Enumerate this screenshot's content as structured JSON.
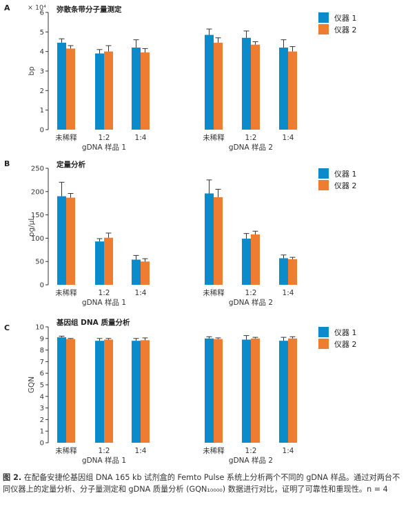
{
  "legend": {
    "series": [
      "仪器 1",
      "仪器 2"
    ],
    "colors": [
      "#0b8bc9",
      "#ef7d31"
    ]
  },
  "caption": {
    "fig_label": "图 2.",
    "text": "在配备安捷伦基因组 DNA 165 kb 试剂盒的 Femto Pulse 系统上分析两个不同的 gDNA 样品。通过对两台不同仪器上的定量分析、分子量测定和 gDNA 质量分析 (GQN₁₀₀₀₀) 数据进行对比，证明了可靠性和重现性。n = 4"
  },
  "chart_data": [
    {
      "type": "bar",
      "panel": "A",
      "title": "弥散条带分子量测定",
      "ylabel": "bp",
      "exponent_label": "× 10⁴",
      "ylim": [
        0,
        6
      ],
      "yticks": [
        0,
        1,
        2,
        3,
        4,
        5,
        6
      ],
      "grid": false,
      "legend_position": "top-right",
      "groups": [
        {
          "name": "gDNA 样品 1",
          "categories": [
            "未稀释",
            "1:2",
            "1:4"
          ]
        },
        {
          "name": "gDNA 样品 2",
          "categories": [
            "未稀释",
            "1:2",
            "1:4"
          ]
        }
      ],
      "series": [
        {
          "name": "仪器 1",
          "values": [
            4.45,
            3.9,
            4.2,
            4.85,
            4.7,
            4.2
          ],
          "errors": [
            0.2,
            0.2,
            0.4,
            0.3,
            0.35,
            0.4
          ]
        },
        {
          "name": "仪器 2",
          "values": [
            4.15,
            4.0,
            3.95,
            4.45,
            4.35,
            4.0
          ],
          "errors": [
            0.15,
            0.3,
            0.2,
            0.25,
            0.15,
            0.25
          ]
        }
      ]
    },
    {
      "type": "bar",
      "panel": "B",
      "title": "定量分析",
      "ylabel": "pg/μL",
      "ylim": [
        0,
        250
      ],
      "yticks": [
        0,
        50,
        100,
        150,
        200,
        250
      ],
      "grid": false,
      "legend_position": "top-right",
      "groups": [
        {
          "name": "gDNA 样品 1",
          "categories": [
            "未稀释",
            "1:2",
            "1:4"
          ]
        },
        {
          "name": "gDNA 样品 2",
          "categories": [
            "未稀释",
            "1:2",
            "1:4"
          ]
        }
      ],
      "series": [
        {
          "name": "仪器 1",
          "values": [
            190,
            93,
            54,
            196,
            99,
            57
          ],
          "errors": [
            30,
            6,
            9,
            29,
            11,
            7
          ]
        },
        {
          "name": "仪器 2",
          "values": [
            187,
            101,
            50,
            188,
            108,
            55
          ],
          "errors": [
            9,
            10,
            6,
            17,
            7,
            4
          ]
        }
      ]
    },
    {
      "type": "bar",
      "panel": "C",
      "title": "基因组 DNA 质量分析",
      "ylabel": "GQN",
      "ylim": [
        0,
        10
      ],
      "yticks": [
        0,
        1,
        2,
        3,
        4,
        5,
        6,
        7,
        8,
        9,
        10
      ],
      "grid": false,
      "legend_position": "top-right",
      "groups": [
        {
          "name": "gDNA 样品 1",
          "categories": [
            "未稀释",
            "1:2",
            "1:4"
          ]
        },
        {
          "name": "gDNA 样品 2",
          "categories": [
            "未稀释",
            "1:2",
            "1:4"
          ]
        }
      ],
      "series": [
        {
          "name": "仪器 1",
          "values": [
            9.1,
            8.8,
            8.8,
            9.0,
            8.9,
            8.8
          ],
          "errors": [
            0.1,
            0.2,
            0.2,
            0.15,
            0.35,
            0.3
          ]
        },
        {
          "name": "仪器 2",
          "values": [
            8.95,
            8.9,
            8.85,
            8.95,
            9.0,
            9.0
          ],
          "errors": [
            0.05,
            0.1,
            0.2,
            0.1,
            0.1,
            0.15
          ]
        }
      ]
    }
  ]
}
